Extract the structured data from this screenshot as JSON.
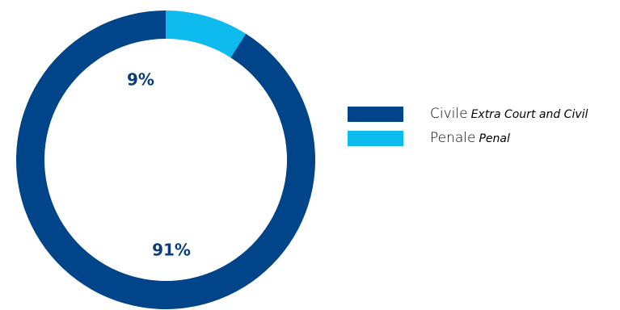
{
  "chart_data": {
    "type": "pie",
    "title": "",
    "categories": [
      "Civile Extra Court and Civil",
      "Penale Penal"
    ],
    "values": [
      91,
      9
    ],
    "slices": [
      {
        "name": "Civile",
        "subname": "Extra Court and Civil",
        "value": 91,
        "label": "91%",
        "color": "#004489"
      },
      {
        "name": "Penale",
        "subname": "Penal",
        "value": 9,
        "label": "9%",
        "color": "#0dbbee"
      }
    ],
    "legend_position": "right"
  }
}
